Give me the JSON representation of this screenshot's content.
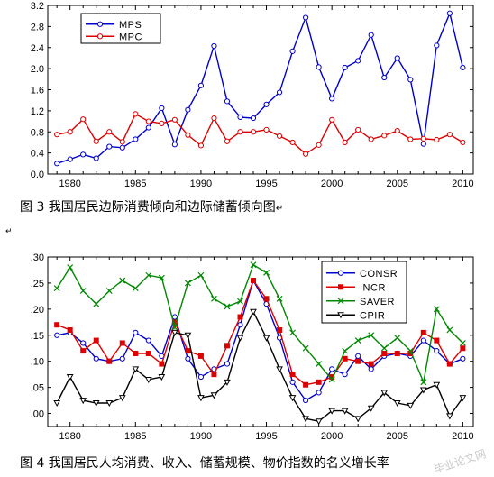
{
  "chart_data": [
    {
      "type": "line",
      "x": [
        1979,
        1980,
        1981,
        1982,
        1983,
        1984,
        1985,
        1986,
        1987,
        1988,
        1989,
        1990,
        1991,
        1992,
        1993,
        1994,
        1995,
        1996,
        1997,
        1998,
        1999,
        2000,
        2001,
        2002,
        2003,
        2004,
        2005,
        2006,
        2007,
        2008,
        2009,
        2010
      ],
      "series": [
        {
          "name": "MPS",
          "color": "#0000cc",
          "marker": "circle",
          "values": [
            0.2,
            0.28,
            0.37,
            0.3,
            0.52,
            0.5,
            0.66,
            0.88,
            1.25,
            0.56,
            1.22,
            1.68,
            2.43,
            1.38,
            1.08,
            1.06,
            1.32,
            1.55,
            2.33,
            2.97,
            2.03,
            1.43,
            2.02,
            2.15,
            2.64,
            1.83,
            2.2,
            1.79,
            0.57,
            2.44,
            3.05,
            2.02
          ]
        },
        {
          "name": "MPC",
          "color": "#dd0000",
          "marker": "circle",
          "values": [
            0.75,
            0.8,
            1.04,
            0.62,
            0.8,
            0.61,
            1.14,
            1.0,
            0.96,
            1.03,
            0.74,
            0.54,
            1.06,
            0.62,
            0.8,
            0.8,
            0.84,
            0.72,
            0.6,
            0.38,
            0.55,
            1.03,
            0.6,
            0.84,
            0.66,
            0.73,
            0.82,
            0.66,
            0.67,
            0.65,
            0.75,
            0.6
          ]
        }
      ],
      "yticks": [
        0.0,
        0.4,
        0.8,
        1.2,
        1.6,
        2.0,
        2.4,
        2.8,
        3.2
      ],
      "ytick_labels": [
        "0.0",
        "0.4",
        "0.8",
        "1.2",
        "1.6",
        "2.0",
        "2.4",
        "2.8",
        "3.2"
      ],
      "xticks": [
        1980,
        1985,
        1990,
        1995,
        2000,
        2005,
        2010
      ],
      "ylim": [
        0,
        3.2
      ],
      "xlim": [
        1978.3,
        2010.8
      ],
      "legend_position": "top-left",
      "grid": false,
      "title": "",
      "xlabel": "",
      "ylabel": ""
    },
    {
      "type": "line",
      "x": [
        1979,
        1980,
        1981,
        1982,
        1983,
        1984,
        1985,
        1986,
        1987,
        1988,
        1989,
        1990,
        1991,
        1992,
        1993,
        1994,
        1995,
        1996,
        1997,
        1998,
        1999,
        2000,
        2001,
        2002,
        2003,
        2004,
        2005,
        2006,
        2007,
        2008,
        2009,
        2010
      ],
      "series": [
        {
          "name": "CONSR",
          "color": "#0000cc",
          "marker": "circle",
          "values": [
            0.15,
            0.155,
            0.135,
            0.105,
            0.1,
            0.105,
            0.155,
            0.14,
            0.11,
            0.185,
            0.105,
            0.07,
            0.085,
            0.095,
            0.17,
            0.255,
            0.21,
            0.145,
            0.06,
            0.025,
            0.04,
            0.085,
            0.075,
            0.11,
            0.085,
            0.11,
            0.115,
            0.11,
            0.14,
            0.12,
            0.095,
            0.105
          ]
        },
        {
          "name": "INCR",
          "color": "#dd0000",
          "marker": "square",
          "values": [
            0.17,
            0.16,
            0.12,
            0.14,
            0.1,
            0.135,
            0.115,
            0.115,
            0.095,
            0.175,
            0.12,
            0.11,
            0.075,
            0.13,
            0.185,
            0.255,
            0.22,
            0.16,
            0.075,
            0.055,
            0.06,
            0.07,
            0.105,
            0.1,
            0.095,
            0.115,
            0.115,
            0.115,
            0.155,
            0.14,
            0.095,
            0.125
          ]
        },
        {
          "name": "SAVER",
          "color": "#008800",
          "marker": "x",
          "values": [
            0.24,
            0.28,
            0.235,
            0.21,
            0.235,
            0.255,
            0.24,
            0.265,
            0.26,
            0.165,
            0.25,
            0.265,
            0.22,
            0.205,
            0.215,
            0.285,
            0.27,
            0.22,
            0.155,
            0.125,
            0.095,
            0.065,
            0.12,
            0.14,
            0.15,
            0.125,
            0.145,
            0.12,
            0.06,
            0.2,
            0.16,
            0.135
          ]
        },
        {
          "name": "CPIR",
          "color": "#000000",
          "marker": "triangle-down",
          "values": [
            0.02,
            0.07,
            0.025,
            0.02,
            0.02,
            0.03,
            0.085,
            0.065,
            0.07,
            0.155,
            0.15,
            0.03,
            0.035,
            0.06,
            0.145,
            0.195,
            0.145,
            0.085,
            0.03,
            -0.01,
            -0.015,
            0.005,
            0.005,
            -0.01,
            0.01,
            0.04,
            0.02,
            0.015,
            0.045,
            0.055,
            -0.005,
            0.03
          ]
        }
      ],
      "yticks": [
        0.0,
        0.05,
        0.1,
        0.15,
        0.2,
        0.25,
        0.3
      ],
      "ytick_labels": [
        ".00",
        ".05",
        ".10",
        ".15",
        ".20",
        ".25",
        ".30"
      ],
      "xticks": [
        1980,
        1985,
        1990,
        1995,
        2000,
        2005,
        2010
      ],
      "ylim": [
        -0.025,
        0.3
      ],
      "xlim": [
        1978.3,
        2010.8
      ],
      "legend_position": "top-right",
      "grid": false,
      "title": "",
      "xlabel": "",
      "ylabel": ""
    }
  ],
  "captions": {
    "figure3": "图 3 我国居民边际消费倾向和边际储蓄倾向图",
    "figure4": "图 4 我国居民人均消费、收入、储蓄规模、物价指数的名义增长率",
    "edit_mark": "↵",
    "edit_mark2": "↵"
  },
  "watermark": "毕业论文网"
}
